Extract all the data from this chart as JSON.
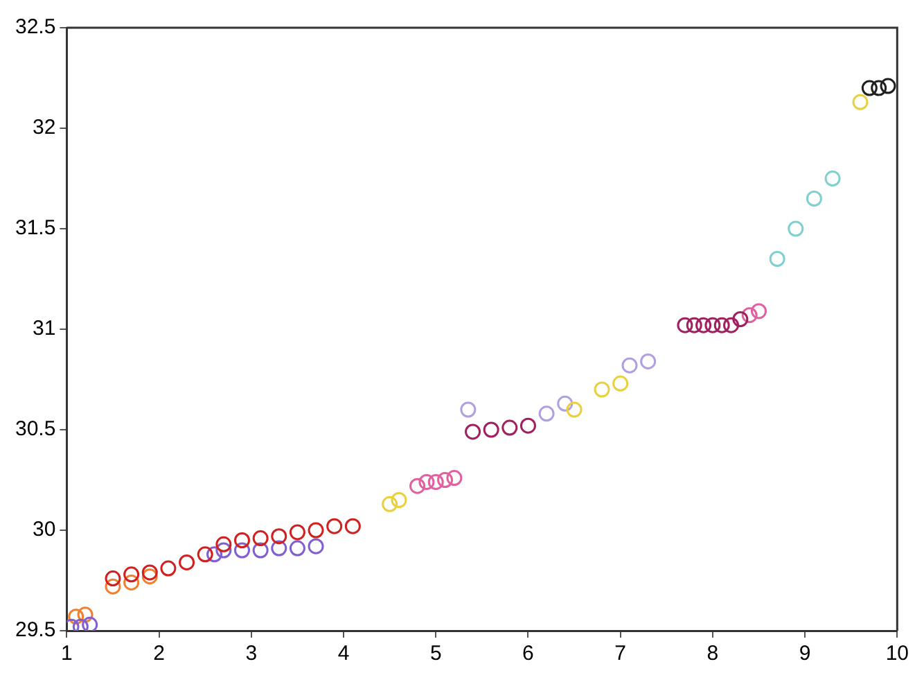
{
  "chart_data": {
    "type": "scatter",
    "marker": "circle",
    "grid": false,
    "legend": false,
    "xlim": [
      1,
      10
    ],
    "xticks": [
      1,
      2,
      3,
      4,
      5,
      6,
      7,
      8,
      9,
      10
    ],
    "ylim": [
      29.5,
      32.5
    ],
    "yticks": [
      29.5,
      30,
      30.5,
      31,
      31.5,
      32,
      32.5
    ],
    "series": [
      {
        "color": "#d02020",
        "x": [
          1.5,
          1.7,
          1.9,
          2.1,
          2.3,
          2.5,
          2.7,
          2.9,
          3.1,
          3.3,
          3.5,
          3.7,
          3.9,
          4.1
        ],
        "values": [
          29.76,
          29.78,
          29.79,
          29.81,
          29.84,
          29.88,
          29.93,
          29.95,
          29.96,
          29.97,
          29.99,
          30.0,
          30.02,
          30.02
        ]
      },
      {
        "color": "#8060d0",
        "x": [
          1.05,
          1.15,
          1.25,
          2.6,
          2.7,
          2.9,
          3.1,
          3.3,
          3.5,
          3.7
        ],
        "values": [
          29.52,
          29.52,
          29.53,
          29.88,
          29.9,
          29.9,
          29.9,
          29.91,
          29.91,
          29.92
        ]
      },
      {
        "color": "#f08030",
        "x": [
          1.1,
          1.2,
          1.5,
          1.7,
          1.9
        ],
        "values": [
          29.57,
          29.58,
          29.72,
          29.74,
          29.77
        ]
      },
      {
        "color": "#a02060",
        "x": [
          5.4,
          5.6,
          5.8,
          6.0,
          7.7,
          7.8,
          7.9,
          8.0,
          8.1,
          8.2,
          8.3
        ],
        "values": [
          30.49,
          30.5,
          30.51,
          30.52,
          31.02,
          31.02,
          31.02,
          31.02,
          31.02,
          31.02,
          31.05
        ]
      },
      {
        "color": "#e060a0",
        "x": [
          4.8,
          4.9,
          5.0,
          5.1,
          5.2,
          8.4,
          8.5
        ],
        "values": [
          30.22,
          30.24,
          30.24,
          30.25,
          30.26,
          31.07,
          31.09
        ]
      },
      {
        "color": "#e8d040",
        "x": [
          4.5,
          4.6,
          6.5,
          6.8,
          7.0,
          9.6
        ],
        "values": [
          30.13,
          30.15,
          30.6,
          30.7,
          30.73,
          32.13
        ]
      },
      {
        "color": "#b0a0e0",
        "x": [
          5.35,
          6.2,
          6.4,
          7.1,
          7.3
        ],
        "values": [
          30.6,
          30.58,
          30.63,
          30.82,
          30.84
        ]
      },
      {
        "color": "#80d0d0",
        "x": [
          8.7,
          8.9,
          9.1,
          9.3
        ],
        "values": [
          31.35,
          31.5,
          31.65,
          31.75
        ]
      },
      {
        "color": "#202020",
        "x": [
          9.7,
          9.8,
          9.9
        ],
        "values": [
          32.2,
          32.2,
          32.21
        ]
      }
    ]
  }
}
